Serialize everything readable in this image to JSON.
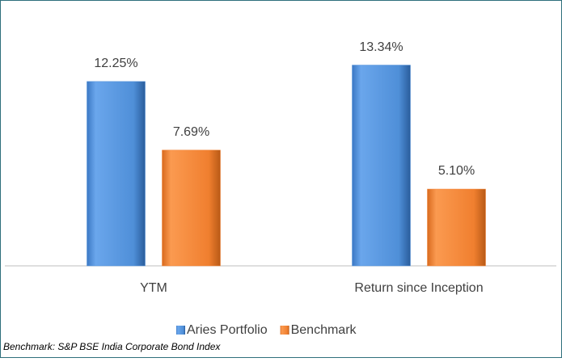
{
  "chart_data": {
    "type": "bar",
    "categories": [
      "YTM",
      "Return since Inception"
    ],
    "series": [
      {
        "name": "Aries Portfolio",
        "color": "#4f8fd8",
        "values": [
          12.25,
          13.34
        ],
        "value_labels": [
          "12.25%",
          "13.34%"
        ]
      },
      {
        "name": "Benchmark",
        "color": "#f07f2f",
        "values": [
          7.69,
          5.1
        ],
        "value_labels": [
          "7.69%",
          "5.10%"
        ]
      }
    ],
    "ylim": [
      0,
      16
    ],
    "legend": "bottom",
    "note": "Benchmark: S&P BSE India Corporate Bond Index"
  }
}
